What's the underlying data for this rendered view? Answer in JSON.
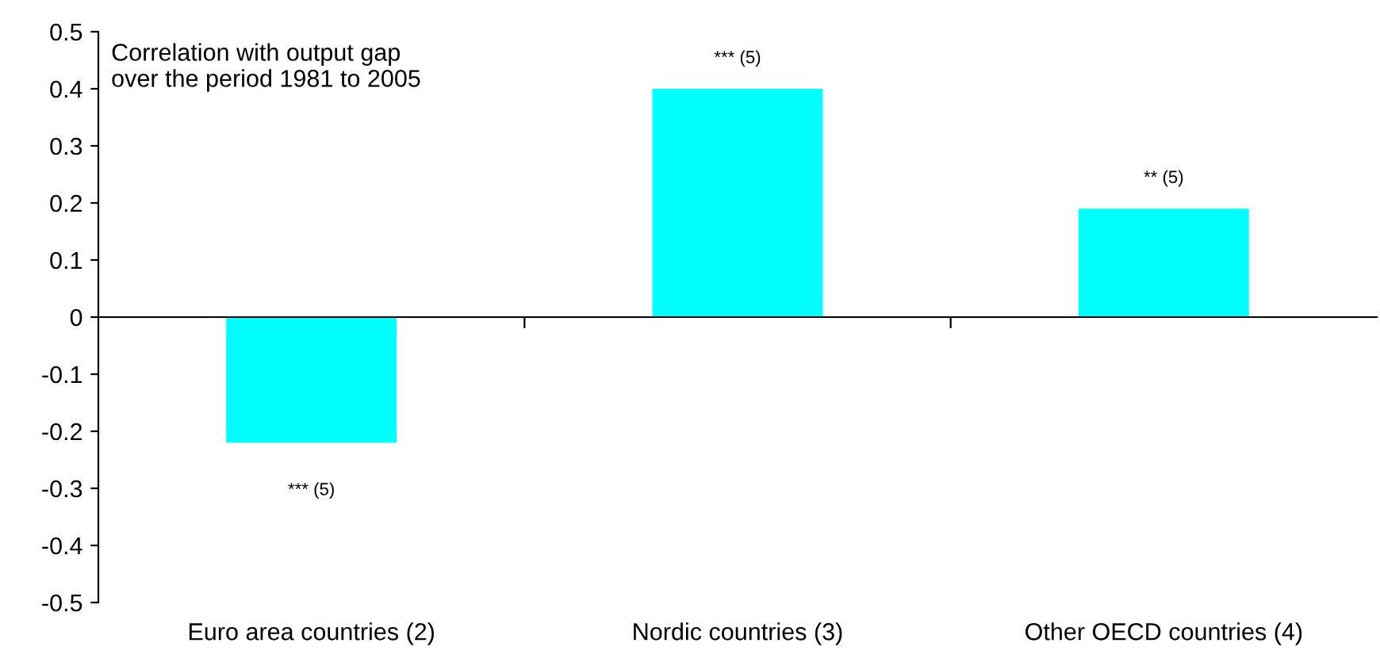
{
  "chart_data": {
    "type": "bar",
    "title": "Correlation with output gap\nover the period 1981 to 2005",
    "categories": [
      "Euro area countries (2)",
      "Nordic countries (3)",
      "Other OECD countries (4)"
    ],
    "values": [
      -0.22,
      0.4,
      0.19
    ],
    "color": "#00ffff",
    "ylim": [
      -0.5,
      0.5
    ],
    "yticks": [
      -0.5,
      -0.4,
      -0.3,
      -0.2,
      -0.1,
      0,
      0.1,
      0.2,
      0.3,
      0.4,
      0.5
    ],
    "annotations": [
      {
        "text": "*** (5)",
        "x": "Euro area countries (2)",
        "y": -0.22
      },
      {
        "text": "*** (5)",
        "x": "Nordic countries (3)",
        "y": 0.4
      },
      {
        "text": "** (5)",
        "x": "Other OECD countries (4)",
        "y": 0.19
      }
    ]
  }
}
